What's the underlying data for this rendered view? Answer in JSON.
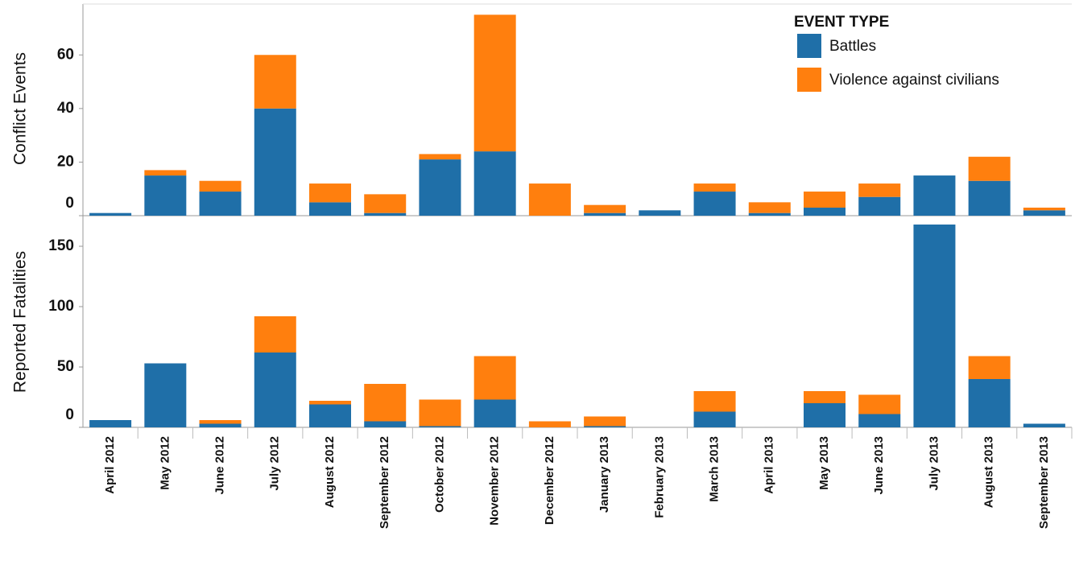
{
  "chart_data": [
    {
      "type": "bar",
      "stacked": true,
      "y_label": "Conflict Events",
      "legend_title": "EVENT TYPE",
      "ylim": [
        0,
        79
      ],
      "yticks": [
        0,
        20,
        40,
        60
      ],
      "series": [
        {
          "name": "Battles",
          "color": "#1f6fa8",
          "values": [
            1,
            15,
            9,
            40,
            5,
            1,
            21,
            24,
            0,
            1,
            2,
            9,
            1,
            3,
            7,
            15,
            13,
            2
          ]
        },
        {
          "name": "Violence against civilians",
          "color": "#ff7f0e",
          "values": [
            0,
            2,
            4,
            20,
            7,
            7,
            2,
            51,
            12,
            3,
            0,
            3,
            4,
            6,
            5,
            0,
            9,
            1
          ]
        }
      ]
    },
    {
      "type": "bar",
      "stacked": true,
      "y_label": "Reported Fatalities",
      "categories": [
        "April 2012",
        "May 2012",
        "June 2012",
        "July 2012",
        "August 2012",
        "September 2012",
        "October 2012",
        "November 2012",
        "December 2012",
        "January 2013",
        "February 2013",
        "March 2013",
        "April 2013",
        "May 2013",
        "June 2013",
        "July 2013",
        "August 2013",
        "September 2013"
      ],
      "ylim": [
        0,
        174
      ],
      "yticks": [
        0,
        50,
        100,
        150
      ],
      "series": [
        {
          "color": "#1f6fa8",
          "values": [
            6,
            53,
            3,
            62,
            19,
            5,
            1,
            23,
            0,
            1,
            0,
            13,
            0,
            20,
            11,
            168,
            40,
            3
          ]
        },
        {
          "color": "#ff7f0e",
          "values": [
            0,
            0,
            3,
            30,
            3,
            31,
            22,
            36,
            5,
            8,
            0,
            17,
            0,
            10,
            16,
            0,
            19,
            0
          ]
        }
      ]
    }
  ]
}
